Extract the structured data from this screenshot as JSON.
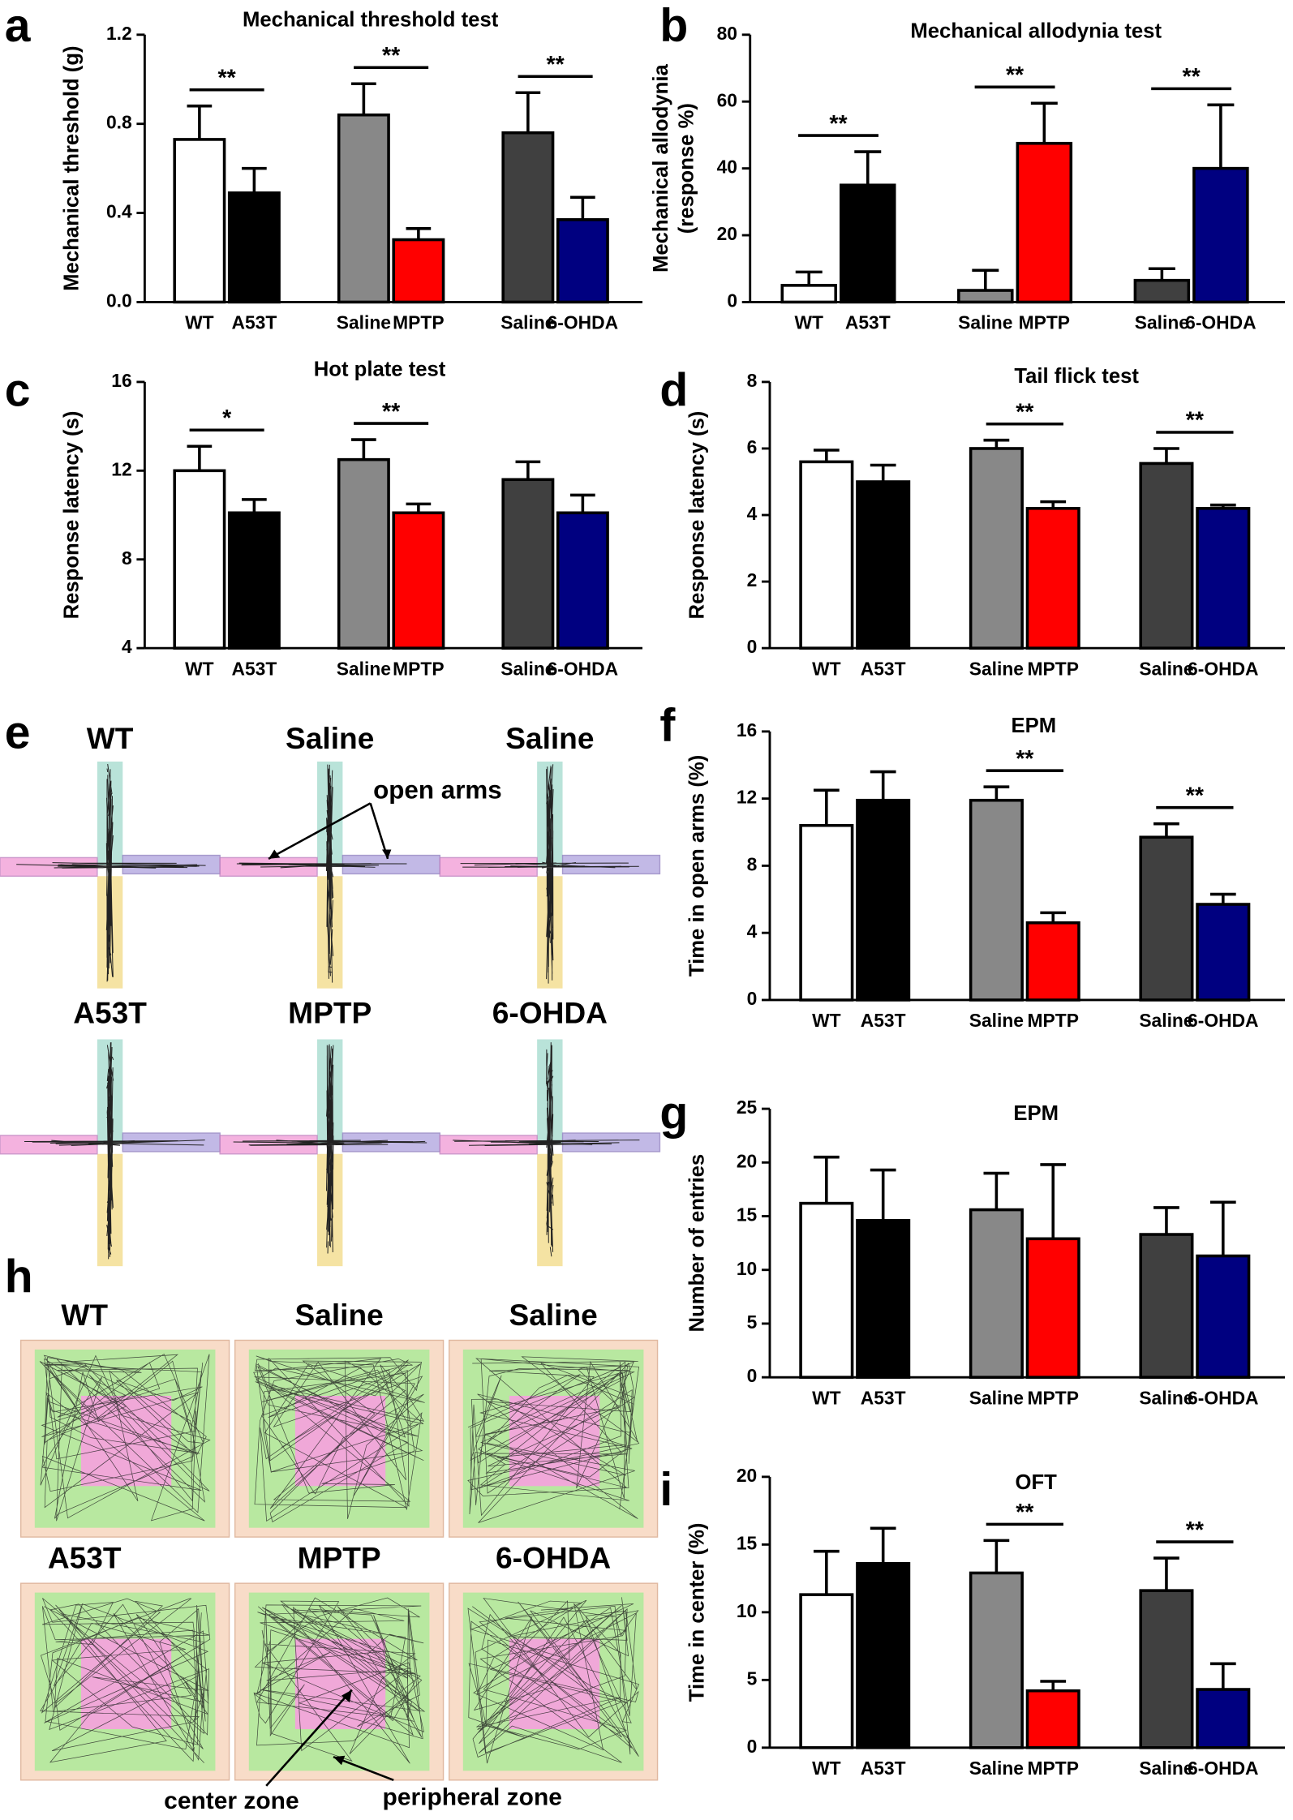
{
  "chart_data": [
    {
      "type": "bar",
      "panel": "a",
      "title": "Mechanical threshold test",
      "y_label": [
        "Mechanical threshold (g)"
      ],
      "categories": [
        "WT",
        "A53T",
        "Saline",
        "MPTP",
        "Saline",
        "6-OHDA"
      ],
      "values": [
        0.73,
        0.49,
        0.84,
        0.28,
        0.76,
        0.37
      ],
      "errors": [
        0.15,
        0.11,
        0.14,
        0.05,
        0.18,
        0.1
      ],
      "colors": [
        "#ffffff",
        "#000000",
        "#888888",
        "#ff0000",
        "#404040",
        "#000080"
      ],
      "ylim": [
        0,
        1.2
      ],
      "yticks": [
        {
          "value": 0,
          "label": "0.0"
        },
        0.4,
        0.8,
        1.2
      ],
      "significance": [
        "**",
        "**",
        "**"
      ]
    },
    {
      "type": "bar",
      "panel": "b",
      "title": "Mechanical allodynia test",
      "y_label": [
        "Mechanical allodynia",
        "(response %)"
      ],
      "categories": [
        "WT",
        "A53T",
        "Saline",
        "MPTP",
        "Saline",
        "6-OHDA"
      ],
      "values": [
        5,
        35,
        3.5,
        47.5,
        6.5,
        40
      ],
      "errors": [
        4,
        10,
        6,
        12,
        3.5,
        19
      ],
      "colors": [
        "#ffffff",
        "#000000",
        "#888888",
        "#ff0000",
        "#404040",
        "#000080"
      ],
      "ylim": [
        0,
        80
      ],
      "yticks": [
        0,
        20,
        40,
        60,
        80
      ],
      "significance": [
        "**",
        "**",
        "**"
      ]
    },
    {
      "type": "bar",
      "panel": "c",
      "title": "Hot plate test",
      "y_label": [
        "Response latency (s)"
      ],
      "categories": [
        "WT",
        "A53T",
        "Saline",
        "MPTP",
        "Saline",
        "6-OHDA"
      ],
      "values": [
        12.0,
        10.1,
        12.5,
        10.1,
        11.6,
        10.1
      ],
      "errors": [
        1.1,
        0.6,
        0.9,
        0.4,
        0.8,
        0.8
      ],
      "colors": [
        "#ffffff",
        "#000000",
        "#888888",
        "#ff0000",
        "#404040",
        "#000080"
      ],
      "ylim": [
        4,
        16
      ],
      "yticks": [
        4,
        8,
        12,
        16
      ],
      "significance": [
        "*",
        "**",
        null
      ]
    },
    {
      "type": "bar",
      "panel": "d",
      "title": "Tail flick test",
      "y_label": [
        "Response latency (s)"
      ],
      "categories": [
        "WT",
        "A53T",
        "Saline",
        "MPTP",
        "Saline",
        "6-OHDA"
      ],
      "values": [
        5.6,
        5.0,
        6.0,
        4.2,
        5.55,
        4.2
      ],
      "errors": [
        0.35,
        0.5,
        0.25,
        0.2,
        0.45,
        0.1
      ],
      "colors": [
        "#ffffff",
        "#000000",
        "#888888",
        "#ff0000",
        "#404040",
        "#000080"
      ],
      "ylim": [
        0,
        8
      ],
      "yticks": [
        0,
        2,
        4,
        6,
        8
      ],
      "significance": [
        null,
        "**",
        "**"
      ]
    },
    {
      "type": "bar",
      "panel": "f",
      "title": "EPM",
      "y_label": [
        "Time in open arms (%)"
      ],
      "categories": [
        "WT",
        "A53T",
        "Saline",
        "MPTP",
        "Saline",
        "6-OHDA"
      ],
      "values": [
        10.4,
        11.9,
        11.9,
        4.6,
        9.7,
        5.7
      ],
      "errors": [
        2.1,
        1.7,
        0.8,
        0.6,
        0.8,
        0.6
      ],
      "colors": [
        "#ffffff",
        "#000000",
        "#888888",
        "#ff0000",
        "#404040",
        "#000080"
      ],
      "ylim": [
        0,
        16
      ],
      "yticks": [
        0,
        4,
        8,
        12,
        16
      ],
      "significance": [
        null,
        "**",
        "**"
      ]
    },
    {
      "type": "bar",
      "panel": "g",
      "title": "EPM",
      "y_label": [
        "Number of entries"
      ],
      "categories": [
        "WT",
        "A53T",
        "Saline",
        "MPTP",
        "Saline",
        "6-OHDA"
      ],
      "values": [
        16.2,
        14.6,
        15.6,
        12.9,
        13.3,
        11.3
      ],
      "errors": [
        4.3,
        4.7,
        3.4,
        6.9,
        2.5,
        5.0
      ],
      "colors": [
        "#ffffff",
        "#000000",
        "#888888",
        "#ff0000",
        "#404040",
        "#000080"
      ],
      "ylim": [
        0,
        25
      ],
      "yticks": [
        0,
        5,
        10,
        15,
        20,
        25
      ],
      "significance": [
        null,
        null,
        null
      ]
    },
    {
      "type": "bar",
      "panel": "i",
      "title": "OFT",
      "y_label": [
        "Time in center (%)"
      ],
      "categories": [
        "WT",
        "A53T",
        "Saline",
        "MPTP",
        "Saline",
        "6-OHDA"
      ],
      "values": [
        11.3,
        13.6,
        12.9,
        4.2,
        11.6,
        4.3
      ],
      "errors": [
        3.2,
        2.6,
        2.4,
        0.7,
        2.4,
        1.9
      ],
      "colors": [
        "#ffffff",
        "#000000",
        "#888888",
        "#ff0000",
        "#404040",
        "#000080"
      ],
      "ylim": [
        0,
        20
      ],
      "yticks": [
        0,
        5,
        10,
        15,
        20
      ],
      "significance": [
        null,
        "**",
        "**"
      ]
    }
  ],
  "panel_e": {
    "letter": "e",
    "labels": [
      "WT",
      "Saline",
      "Saline",
      "A53T",
      "MPTP",
      "6-OHDA"
    ],
    "annotation": "open arms"
  },
  "panel_h": {
    "letter": "h",
    "labels": [
      "WT",
      "Saline",
      "Saline",
      "A53T",
      "MPTP",
      "6-OHDA"
    ],
    "annotations": [
      "center zone",
      "peripheral zone"
    ]
  }
}
